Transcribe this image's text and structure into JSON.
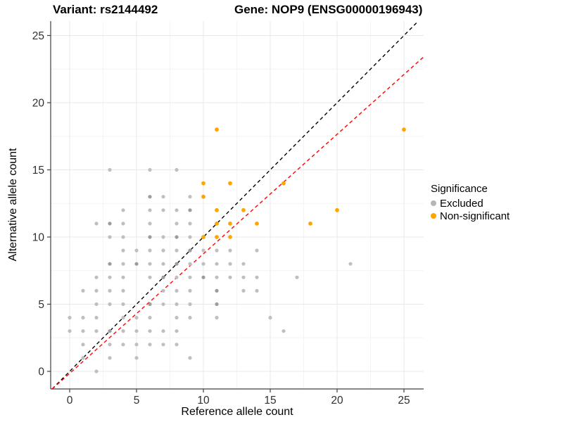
{
  "figure": {
    "title_variant": "Variant: rs2144492",
    "title_gene": "Gene: NOP9 (ENSG00000196943)"
  },
  "chart_data": {
    "type": "scatter",
    "title": "Variant: rs2144492   Gene: NOP9 (ENSG00000196943)",
    "xlabel": "Reference allele count",
    "ylabel": "Alternative allele count",
    "x_ticks": [
      0,
      5,
      10,
      15,
      20,
      25
    ],
    "y_ticks": [
      0,
      5,
      10,
      15,
      20,
      25
    ],
    "xlim": [
      -1.4,
      26.5
    ],
    "ylim": [
      -1.3,
      26.1
    ],
    "grid": "major and minor gridlines, white background",
    "legend_position": "right",
    "legend": {
      "title": "Significance",
      "items": [
        {
          "label": "Excluded",
          "color": "#b5b5b5"
        },
        {
          "label": "Non-significant",
          "color": "#ffa500"
        }
      ]
    },
    "series": [
      {
        "name": "Excluded",
        "color": "#bfbfbf",
        "dark_color": "#9c9c9c",
        "points": [
          [
            2,
            0
          ],
          [
            1,
            1
          ],
          [
            3,
            1
          ],
          [
            5,
            1
          ],
          [
            9,
            1
          ],
          [
            1,
            2
          ],
          [
            3,
            2
          ],
          [
            4,
            2
          ],
          [
            5,
            2
          ],
          [
            6,
            2
          ],
          [
            7,
            2
          ],
          [
            8,
            2
          ],
          [
            0,
            3
          ],
          [
            1,
            3
          ],
          [
            2,
            3
          ],
          [
            3,
            3
          ],
          [
            4,
            3
          ],
          [
            5,
            3
          ],
          [
            6,
            3
          ],
          [
            7,
            3
          ],
          [
            8,
            3
          ],
          [
            16,
            3
          ],
          [
            0,
            4
          ],
          [
            1,
            4
          ],
          [
            2,
            4
          ],
          [
            4,
            4
          ],
          [
            5,
            4
          ],
          [
            6,
            4
          ],
          [
            8,
            4
          ],
          [
            9,
            4
          ],
          [
            11,
            4
          ],
          [
            15,
            4
          ],
          [
            2,
            5
          ],
          [
            3,
            5
          ],
          [
            4,
            5
          ],
          [
            6,
            5
          ],
          [
            7,
            5
          ],
          [
            8,
            5
          ],
          [
            9,
            5
          ],
          [
            11,
            5
          ],
          [
            1,
            6
          ],
          [
            2,
            6
          ],
          [
            3,
            6
          ],
          [
            4,
            6
          ],
          [
            7,
            6
          ],
          [
            8,
            6
          ],
          [
            9,
            6
          ],
          [
            11,
            6
          ],
          [
            13,
            6
          ],
          [
            14,
            6
          ],
          [
            2,
            7
          ],
          [
            3,
            7
          ],
          [
            4,
            7
          ],
          [
            6,
            7
          ],
          [
            7,
            7
          ],
          [
            8,
            7
          ],
          [
            9,
            7
          ],
          [
            10,
            7
          ],
          [
            11,
            7
          ],
          [
            12,
            7
          ],
          [
            13,
            7
          ],
          [
            14,
            7
          ],
          [
            17,
            7
          ],
          [
            3,
            8
          ],
          [
            4,
            8
          ],
          [
            5,
            8
          ],
          [
            6,
            8
          ],
          [
            7,
            8
          ],
          [
            8,
            8
          ],
          [
            9,
            8
          ],
          [
            10,
            8
          ],
          [
            11,
            8
          ],
          [
            12,
            8
          ],
          [
            13,
            8
          ],
          [
            21,
            8
          ],
          [
            4,
            9
          ],
          [
            5,
            9
          ],
          [
            6,
            9
          ],
          [
            7,
            9
          ],
          [
            8,
            9
          ],
          [
            9,
            9
          ],
          [
            10,
            9
          ],
          [
            11,
            9
          ],
          [
            12,
            9
          ],
          [
            14,
            9
          ],
          [
            3,
            10
          ],
          [
            4,
            10
          ],
          [
            6,
            10
          ],
          [
            7,
            10
          ],
          [
            8,
            10
          ],
          [
            9,
            10
          ],
          [
            2,
            11
          ],
          [
            3,
            11
          ],
          [
            4,
            11
          ],
          [
            6,
            11
          ],
          [
            8,
            11
          ],
          [
            9,
            11
          ],
          [
            4,
            12
          ],
          [
            6,
            12
          ],
          [
            7,
            12
          ],
          [
            8,
            12
          ],
          [
            9,
            12
          ],
          [
            6,
            13
          ],
          [
            7,
            13
          ],
          [
            9,
            13
          ],
          [
            3,
            15
          ],
          [
            6,
            15
          ],
          [
            8,
            15
          ]
        ],
        "darker_points": [
          [
            3,
            3
          ],
          [
            6,
            5
          ],
          [
            5,
            8
          ],
          [
            3,
            8
          ],
          [
            8,
            8
          ],
          [
            7,
            7
          ],
          [
            10,
            7
          ],
          [
            9,
            9
          ],
          [
            11,
            6
          ],
          [
            11,
            5
          ],
          [
            3,
            11
          ],
          [
            9,
            12
          ],
          [
            6,
            10
          ],
          [
            8,
            10
          ],
          [
            6,
            13
          ]
        ]
      },
      {
        "name": "Non-significant",
        "color": "#ffa500",
        "points": [
          [
            10,
            10
          ],
          [
            11,
            10
          ],
          [
            12,
            10
          ],
          [
            11,
            11
          ],
          [
            12,
            11
          ],
          [
            14,
            11
          ],
          [
            18,
            11
          ],
          [
            11,
            12
          ],
          [
            13,
            12
          ],
          [
            20,
            12
          ],
          [
            10,
            13
          ],
          [
            10,
            14
          ],
          [
            12,
            14
          ],
          [
            16,
            14
          ],
          [
            11,
            18
          ],
          [
            25,
            18
          ]
        ]
      }
    ],
    "reference_lines": [
      {
        "name": "identity-line",
        "slope": 1.0,
        "intercept": 0.0,
        "color": "#000000",
        "style": "dashed"
      },
      {
        "name": "fit-line",
        "slope": 0.89,
        "intercept": -0.15,
        "color": "#ff0000",
        "style": "dashed"
      }
    ]
  }
}
